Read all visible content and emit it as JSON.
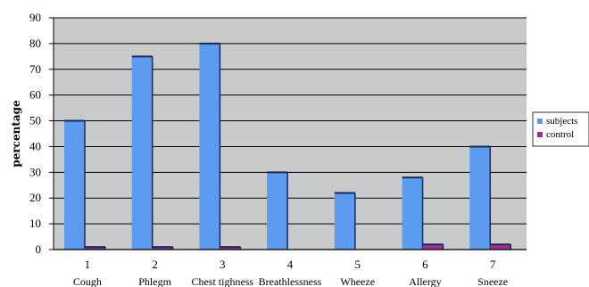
{
  "chart_data": {
    "type": "bar",
    "title": "",
    "xlabel": "",
    "ylabel": "percentage",
    "ylim": [
      0,
      90
    ],
    "yticks": [
      0,
      10,
      20,
      30,
      40,
      50,
      60,
      70,
      80,
      90
    ],
    "grid": true,
    "legend_position": "right",
    "categories": [
      "1",
      "2",
      "3",
      "4",
      "5",
      "6",
      "7"
    ],
    "category_names": [
      "Cough",
      "Phlegm",
      "Chest tighness",
      "Breathlessness",
      "Wheeze",
      "Allergy",
      "Sneeze"
    ],
    "series": [
      {
        "name": "subjects",
        "color": "#5b9bf0",
        "values": [
          50,
          75,
          80,
          30,
          22,
          28,
          40
        ]
      },
      {
        "name": "control",
        "color": "#a0308c",
        "values": [
          1,
          1,
          1,
          0,
          0,
          2,
          2
        ]
      }
    ],
    "colors": {
      "plot_background": "#c8cacc",
      "gridline": "#000000"
    }
  }
}
